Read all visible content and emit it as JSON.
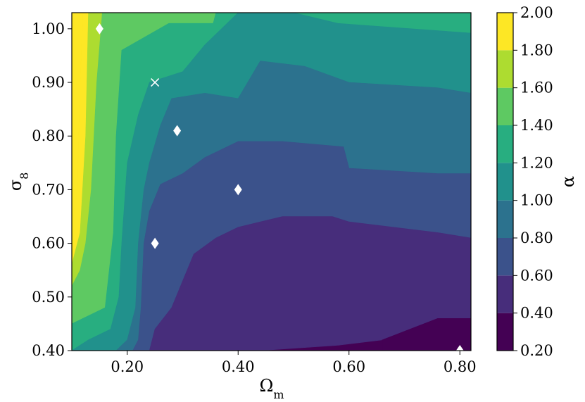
{
  "chart_data": {
    "type": "contourf",
    "xlabel": "Ωm",
    "ylabel": "σ8",
    "colorbar_label": "α",
    "xlim": [
      0.1,
      0.82
    ],
    "ylim": [
      0.4,
      1.03
    ],
    "x_ticks": [
      0.2,
      0.4,
      0.6,
      0.8
    ],
    "x_tick_labels": [
      "0.20",
      "0.40",
      "0.60",
      "0.80"
    ],
    "y_ticks": [
      0.4,
      0.5,
      0.6,
      0.7,
      0.8,
      0.9,
      1.0
    ],
    "y_tick_labels": [
      "0.40",
      "0.50",
      "0.60",
      "0.70",
      "0.80",
      "0.90",
      "1.00"
    ],
    "levels": [
      0.2,
      0.4,
      0.6,
      0.8,
      1.0,
      1.2,
      1.4,
      1.6,
      1.8,
      2.0
    ],
    "level_labels": [
      "0.20",
      "0.40",
      "0.60",
      "0.80",
      "1.00",
      "1.20",
      "1.40",
      "1.60",
      "1.80",
      "2.00"
    ],
    "level_colors": [
      "#440154",
      "#472d7b",
      "#3b528b",
      "#2c728e",
      "#21918c",
      "#28ae80",
      "#5ec962",
      "#addc30",
      "#fde725"
    ],
    "colormap": "viridis",
    "regions": [
      {
        "level": 8,
        "polygon": [
          [
            0.1,
            0.63
          ],
          [
            0.1,
            1.03
          ],
          [
            0.12,
            1.03
          ],
          [
            0.115,
            0.9
          ],
          [
            0.11,
            0.7
          ]
        ]
      },
      {
        "level": 7,
        "polygon": [
          [
            0.1,
            0.56
          ],
          [
            0.1,
            0.63
          ],
          [
            0.11,
            0.7
          ],
          [
            0.115,
            0.9
          ],
          [
            0.12,
            1.03
          ],
          [
            0.13,
            1.03
          ],
          [
            0.125,
            0.8
          ],
          [
            0.115,
            0.62
          ]
        ]
      },
      {
        "level": 6,
        "polygon": [
          [
            0.1,
            0.52
          ],
          [
            0.1,
            0.56
          ],
          [
            0.115,
            0.62
          ],
          [
            0.125,
            0.8
          ],
          [
            0.13,
            1.03
          ],
          [
            0.155,
            1.03
          ],
          [
            0.145,
            0.9
          ],
          [
            0.135,
            0.7
          ],
          [
            0.125,
            0.6
          ],
          [
            0.115,
            0.55
          ]
        ]
      },
      {
        "level": 5,
        "polygon": [
          [
            0.1,
            0.45
          ],
          [
            0.1,
            0.52
          ],
          [
            0.115,
            0.55
          ],
          [
            0.125,
            0.6
          ],
          [
            0.135,
            0.7
          ],
          [
            0.145,
            0.9
          ],
          [
            0.155,
            1.03
          ],
          [
            0.36,
            1.03
          ],
          [
            0.355,
            1.01
          ],
          [
            0.275,
            1.01
          ],
          [
            0.19,
            0.96
          ],
          [
            0.18,
            0.8
          ],
          [
            0.175,
            0.62
          ],
          [
            0.16,
            0.48
          ],
          [
            0.14,
            0.47
          ],
          [
            0.12,
            0.46
          ]
        ]
      },
      {
        "level": 4,
        "polygon": [
          [
            0.1,
            0.4
          ],
          [
            0.1,
            0.45
          ],
          [
            0.12,
            0.46
          ],
          [
            0.14,
            0.47
          ],
          [
            0.16,
            0.48
          ],
          [
            0.175,
            0.62
          ],
          [
            0.18,
            0.8
          ],
          [
            0.19,
            0.96
          ],
          [
            0.275,
            1.01
          ],
          [
            0.355,
            1.01
          ],
          [
            0.36,
            1.03
          ],
          [
            0.82,
            1.03
          ],
          [
            0.82,
            0.992
          ],
          [
            0.58,
            1.01
          ],
          [
            0.5,
            1.03
          ],
          [
            0.4,
            1.03
          ],
          [
            0.34,
            0.97
          ],
          [
            0.3,
            0.92
          ],
          [
            0.24,
            0.9
          ],
          [
            0.22,
            0.84
          ],
          [
            0.2,
            0.75
          ],
          [
            0.19,
            0.6
          ],
          [
            0.185,
            0.5
          ],
          [
            0.17,
            0.44
          ],
          [
            0.13,
            0.42
          ]
        ]
      },
      {
        "level": 3,
        "polygon": [
          [
            0.1,
            0.4
          ],
          [
            0.13,
            0.42
          ],
          [
            0.17,
            0.44
          ],
          [
            0.185,
            0.5
          ],
          [
            0.19,
            0.6
          ],
          [
            0.2,
            0.75
          ],
          [
            0.22,
            0.84
          ],
          [
            0.24,
            0.9
          ],
          [
            0.3,
            0.92
          ],
          [
            0.34,
            0.97
          ],
          [
            0.4,
            1.03
          ],
          [
            0.5,
            1.03
          ],
          [
            0.58,
            1.01
          ],
          [
            0.82,
            0.992
          ],
          [
            0.82,
            0.88
          ],
          [
            0.76,
            0.89
          ],
          [
            0.6,
            0.9
          ],
          [
            0.52,
            0.93
          ],
          [
            0.44,
            0.94
          ],
          [
            0.4,
            0.87
          ],
          [
            0.34,
            0.88
          ],
          [
            0.28,
            0.87
          ],
          [
            0.26,
            0.82
          ],
          [
            0.24,
            0.75
          ],
          [
            0.23,
            0.7
          ],
          [
            0.22,
            0.6
          ],
          [
            0.215,
            0.48
          ],
          [
            0.2,
            0.42
          ],
          [
            0.18,
            0.4
          ]
        ]
      },
      {
        "level": 2,
        "polygon": [
          [
            0.18,
            0.4
          ],
          [
            0.2,
            0.42
          ],
          [
            0.215,
            0.48
          ],
          [
            0.22,
            0.6
          ],
          [
            0.23,
            0.7
          ],
          [
            0.24,
            0.75
          ],
          [
            0.26,
            0.82
          ],
          [
            0.28,
            0.87
          ],
          [
            0.34,
            0.88
          ],
          [
            0.4,
            0.87
          ],
          [
            0.44,
            0.94
          ],
          [
            0.52,
            0.93
          ],
          [
            0.6,
            0.9
          ],
          [
            0.76,
            0.89
          ],
          [
            0.82,
            0.88
          ],
          [
            0.82,
            0.73
          ],
          [
            0.76,
            0.73
          ],
          [
            0.6,
            0.74
          ],
          [
            0.59,
            0.78
          ],
          [
            0.48,
            0.79
          ],
          [
            0.4,
            0.79
          ],
          [
            0.34,
            0.76
          ],
          [
            0.3,
            0.73
          ],
          [
            0.26,
            0.71
          ],
          [
            0.24,
            0.66
          ],
          [
            0.23,
            0.6
          ],
          [
            0.225,
            0.48
          ],
          [
            0.22,
            0.42
          ],
          [
            0.21,
            0.4
          ]
        ]
      },
      {
        "level": 1,
        "polygon": [
          [
            0.21,
            0.4
          ],
          [
            0.22,
            0.42
          ],
          [
            0.225,
            0.48
          ],
          [
            0.23,
            0.6
          ],
          [
            0.24,
            0.66
          ],
          [
            0.26,
            0.71
          ],
          [
            0.3,
            0.73
          ],
          [
            0.34,
            0.76
          ],
          [
            0.4,
            0.79
          ],
          [
            0.48,
            0.79
          ],
          [
            0.59,
            0.78
          ],
          [
            0.6,
            0.74
          ],
          [
            0.76,
            0.73
          ],
          [
            0.82,
            0.73
          ],
          [
            0.82,
            0.61
          ],
          [
            0.76,
            0.62
          ],
          [
            0.6,
            0.64
          ],
          [
            0.57,
            0.65
          ],
          [
            0.48,
            0.65
          ],
          [
            0.4,
            0.63
          ],
          [
            0.36,
            0.61
          ],
          [
            0.32,
            0.58
          ],
          [
            0.3,
            0.53
          ],
          [
            0.28,
            0.48
          ],
          [
            0.25,
            0.44
          ],
          [
            0.24,
            0.4
          ]
        ]
      },
      {
        "level": 0,
        "polygon": [
          [
            0.24,
            0.4
          ],
          [
            0.25,
            0.44
          ],
          [
            0.28,
            0.48
          ],
          [
            0.3,
            0.53
          ],
          [
            0.32,
            0.58
          ],
          [
            0.36,
            0.61
          ],
          [
            0.4,
            0.63
          ],
          [
            0.48,
            0.65
          ],
          [
            0.57,
            0.65
          ],
          [
            0.6,
            0.64
          ],
          [
            0.76,
            0.62
          ],
          [
            0.82,
            0.61
          ],
          [
            0.82,
            0.46
          ],
          [
            0.76,
            0.46
          ],
          [
            0.66,
            0.42
          ],
          [
            0.58,
            0.41
          ],
          [
            0.44,
            0.4
          ]
        ]
      },
      {
        "level": -1,
        "polygon": [
          [
            0.66,
            0.4
          ],
          [
            0.66,
            0.42
          ],
          [
            0.76,
            0.46
          ],
          [
            0.82,
            0.46
          ],
          [
            0.82,
            0.4
          ]
        ]
      }
    ],
    "markers": [
      {
        "shape": "diamond",
        "x": 0.15,
        "y": 1.0
      },
      {
        "shape": "cross",
        "x": 0.25,
        "y": 0.9
      },
      {
        "shape": "diamond",
        "x": 0.29,
        "y": 0.81
      },
      {
        "shape": "diamond",
        "x": 0.4,
        "y": 0.7
      },
      {
        "shape": "diamond",
        "x": 0.25,
        "y": 0.6
      },
      {
        "shape": "diamond",
        "x": 0.8,
        "y": 0.4
      }
    ],
    "marker_color": "#ffffff",
    "grid": false
  }
}
